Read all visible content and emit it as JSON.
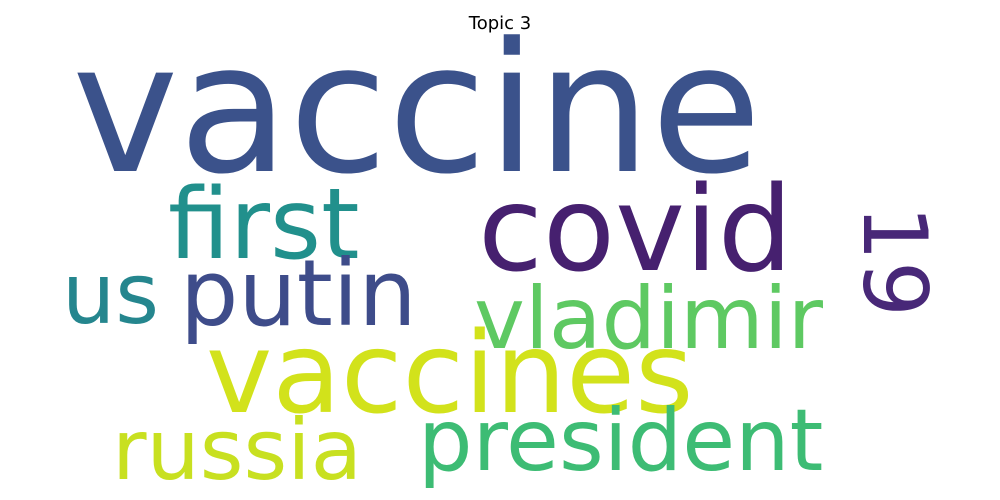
{
  "title": "Topic 3",
  "words": {
    "vaccine": {
      "text": "vaccine",
      "color": "#3b528b"
    },
    "covid": {
      "text": "covid",
      "color": "#46206f"
    },
    "first": {
      "text": "first",
      "color": "#21908c"
    },
    "us": {
      "text": "us",
      "color": "#25868e"
    },
    "putin": {
      "text": "putin",
      "color": "#3e4c8a"
    },
    "vladimir": {
      "text": "vladimir",
      "color": "#5ec962"
    },
    "nineteen": {
      "text": "19",
      "color": "#482878"
    },
    "vaccines": {
      "text": "vaccines",
      "color": "#d2e21b"
    },
    "russia": {
      "text": "russia",
      "color": "#c8e020"
    },
    "president": {
      "text": "president",
      "color": "#3dbc74"
    }
  }
}
